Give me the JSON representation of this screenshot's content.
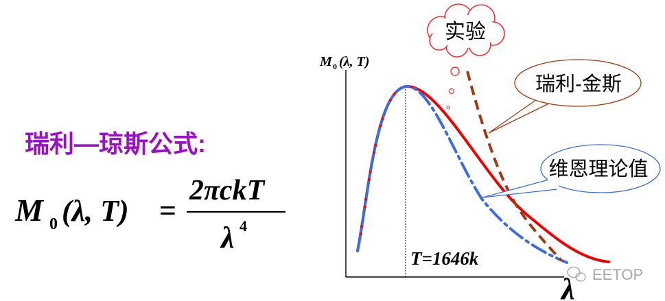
{
  "formula_section": {
    "title": "瑞利—琼斯公式:",
    "title_color": "#9b10c4",
    "lhs_symbol": "M",
    "lhs_subscript": "0",
    "lhs_args": "(λ, T)",
    "equals": "=",
    "numerator": "2πckT",
    "denominator_base": "λ",
    "denominator_exponent": "4"
  },
  "chart": {
    "y_axis_label": "M",
    "y_axis_subscript": "0",
    "y_axis_args": "(λ, T)",
    "x_axis_label": "λ",
    "temperature_label": "T=1646k",
    "curves": {
      "experiment": {
        "color": "#ee0000",
        "style": "solid"
      },
      "rayleigh_jeans": {
        "color": "#9b3a13",
        "style": "dashed"
      },
      "wien": {
        "color": "#3b6de0",
        "style": "dash-dot"
      }
    }
  },
  "callouts": {
    "experiment": "实验",
    "rayleigh_jeans": "瑞利-金斯",
    "wien": "维恩理论值"
  },
  "watermark": "EETOP"
}
